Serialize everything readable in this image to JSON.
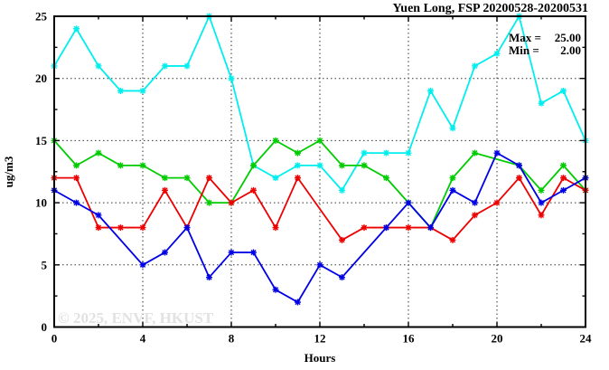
{
  "chart_data": {
    "type": "line",
    "title": "Yuen Long, FSP 20200528-20200531",
    "xlabel": "Hours",
    "ylabel": "ug/m3",
    "xlim": [
      0,
      24
    ],
    "ylim": [
      0,
      25
    ],
    "x_major_ticks": [
      0,
      4,
      8,
      12,
      16,
      20,
      24
    ],
    "x_minor_tick_step": 2,
    "y_major_ticks": [
      0,
      5,
      10,
      15,
      20,
      25
    ],
    "y_minor_tick_step": 2.5,
    "grid": true,
    "grid_x": [
      4,
      8,
      12,
      16,
      20
    ],
    "grid_y": [
      5,
      10,
      15,
      20
    ],
    "legend_position": "none",
    "x": [
      0,
      1,
      2,
      3,
      4,
      5,
      6,
      7,
      8,
      9,
      10,
      11,
      12,
      13,
      14,
      15,
      16,
      17,
      18,
      19,
      20,
      21,
      22,
      23,
      24
    ],
    "series": [
      {
        "name": "cyan-series",
        "color": "#00EEEE",
        "values": [
          21,
          24,
          21,
          19,
          19,
          21,
          21,
          25,
          20,
          13,
          12,
          13,
          13,
          11,
          14,
          14,
          14,
          19,
          16,
          21,
          22,
          25,
          18,
          19,
          15
        ]
      },
      {
        "name": "green-series",
        "color": "#00CC00",
        "values": [
          15,
          13,
          14,
          13,
          13,
          12,
          12,
          10,
          10,
          13,
          15,
          14,
          15,
          13,
          13,
          12,
          10,
          8,
          12,
          14,
          null,
          13,
          11,
          13,
          11
        ]
      },
      {
        "name": "red-series",
        "color": "#EE0000",
        "values": [
          12,
          12,
          8,
          8,
          8,
          11,
          8,
          12,
          10,
          11,
          8,
          12,
          null,
          7,
          8,
          8,
          8,
          8,
          7,
          9,
          10,
          12,
          9,
          12,
          11
        ]
      },
      {
        "name": "blue-series",
        "color": "#0000E6",
        "values": [
          11,
          10,
          9,
          null,
          5,
          6,
          8,
          4,
          6,
          6,
          3,
          2,
          5,
          4,
          null,
          8,
          10,
          8,
          11,
          10,
          14,
          13,
          10,
          11,
          12
        ]
      }
    ],
    "annotations": {
      "max_label": "Max =",
      "max_value": "25.00",
      "min_label": "Min =",
      "min_value": "2.00"
    },
    "watermark": "© 2025, ENVF, HKUST"
  }
}
